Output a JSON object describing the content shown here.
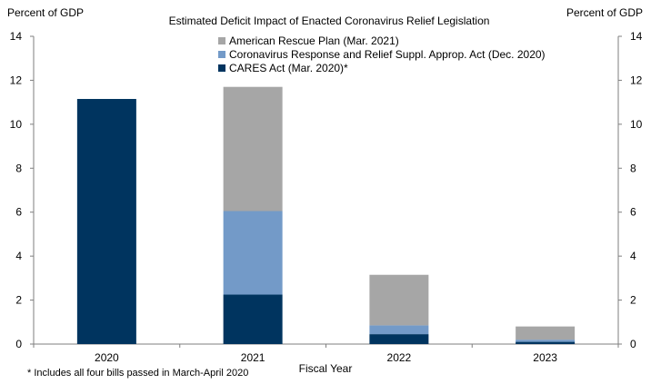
{
  "chart_data": {
    "type": "bar",
    "stacked": true,
    "title": "Estimated Deficit Impact of Enacted Coronavirus  Relief Legislation",
    "ylabel_left": "Percent of GDP",
    "ylabel_right": "Percent of GDP",
    "xlabel": "Fiscal Year",
    "ylim": [
      0,
      14
    ],
    "yticks": [
      "0",
      "2",
      "4",
      "6",
      "8",
      "10",
      "12",
      "14"
    ],
    "categories": [
      "2020",
      "2021",
      "2022",
      "2023"
    ],
    "series": [
      {
        "name": "CARES Act (Mar. 2020)*",
        "color": "#00345f",
        "values": [
          11.15,
          2.25,
          0.45,
          0.1
        ]
      },
      {
        "name": "Coronavirus  Response and Relief Suppl. Approp. Act (Dec. 2020)",
        "color": "#739ac8",
        "values": [
          0,
          3.8,
          0.4,
          0.1
        ]
      },
      {
        "name": "American Rescue Plan (Mar. 2021)",
        "color": "#a6a6a6",
        "values": [
          0,
          5.65,
          2.3,
          0.6
        ]
      }
    ],
    "legend_order": [
      2,
      1,
      0
    ],
    "footnote": "* Includes all four bills passed in March-April 2020"
  }
}
